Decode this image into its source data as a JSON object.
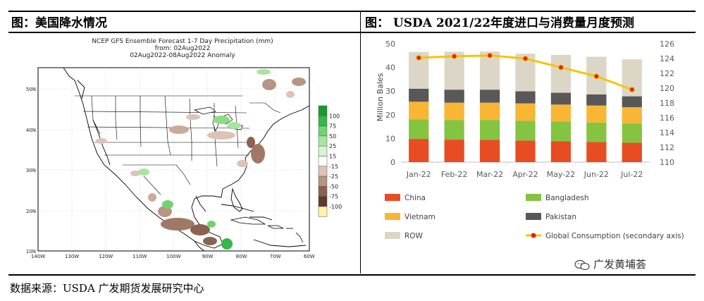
{
  "left_panel": {
    "title": "图：美国降水情况",
    "map": {
      "heading_line1": "NCEP GFS Ensemble Forecast 1-7 Day Precipitation (mm)",
      "heading_line2": "from: 02Aug2022",
      "heading_line3": "02Aug2022-08Aug2022 Anomaly",
      "lat_labels": [
        "50N",
        "40N",
        "30N",
        "20N",
        "10N"
      ],
      "lon_labels": [
        "140W",
        "130W",
        "120W",
        "110W",
        "100W",
        "90W",
        "80W",
        "70W",
        "60W"
      ],
      "legend_levels": [
        "100",
        "75",
        "50",
        "25",
        "15",
        "-15",
        "-25",
        "-50",
        "-75",
        "-100"
      ],
      "legend_colors": [
        "#1a9a2a",
        "#35b84a",
        "#6fd36f",
        "#a6e6a0",
        "#d8f3d2",
        "#ffffff",
        "#dcc3b6",
        "#b79483",
        "#8a6350",
        "#5e3a2a",
        "#fdf3a8"
      ]
    }
  },
  "right_panel": {
    "title": "图：  USDA 2021/22年度进口与消费量月度预测"
  },
  "chart_data": {
    "type": "bar",
    "stacked": true,
    "title": "",
    "categories": [
      "Jan-22",
      "Feb-22",
      "Mar-22",
      "Apr-22",
      "May-22",
      "Jun-22",
      "Jul-22"
    ],
    "ylabel": "Million Bales",
    "ylim": [
      0,
      50
    ],
    "yticks": [
      "0",
      "10",
      "20",
      "30",
      "40",
      "50"
    ],
    "y2lim": [
      110,
      126
    ],
    "y2ticks": [
      "110",
      "112",
      "114",
      "116",
      "118",
      "120",
      "122",
      "124",
      "126"
    ],
    "series": [
      {
        "name": "China",
        "color": "#e84c22",
        "values": [
          9.8,
          9.5,
          9.4,
          9.1,
          8.8,
          8.5,
          8.2
        ]
      },
      {
        "name": "Bangladesh",
        "color": "#84c441",
        "values": [
          8.2,
          8.3,
          8.4,
          8.4,
          8.3,
          8.2,
          8.1
        ]
      },
      {
        "name": "Vietnam",
        "color": "#f9b534",
        "values": [
          7.5,
          7.3,
          7.3,
          7.3,
          7.2,
          7.2,
          6.9
        ]
      },
      {
        "name": "Pakistan",
        "color": "#585858",
        "values": [
          5.5,
          5.5,
          5.5,
          5.1,
          5.0,
          4.7,
          4.6
        ]
      },
      {
        "name": "ROW",
        "color": "#dcd6c6",
        "values": [
          15.5,
          16.0,
          16.1,
          15.9,
          16.0,
          15.9,
          15.6
        ]
      },
      {
        "name": "Global Consumption (secondary axis)",
        "type": "line",
        "axis": "secondary",
        "color": "#f5c400",
        "marker_color": "#e8201c",
        "values": [
          124.1,
          124.3,
          124.4,
          124.0,
          122.8,
          121.6,
          119.8
        ]
      }
    ],
    "legend_position": "bottom"
  },
  "footer": {
    "source": "数据来源：USDA  广发期货发展研究中心",
    "watermark": "广发黄埔荟"
  }
}
